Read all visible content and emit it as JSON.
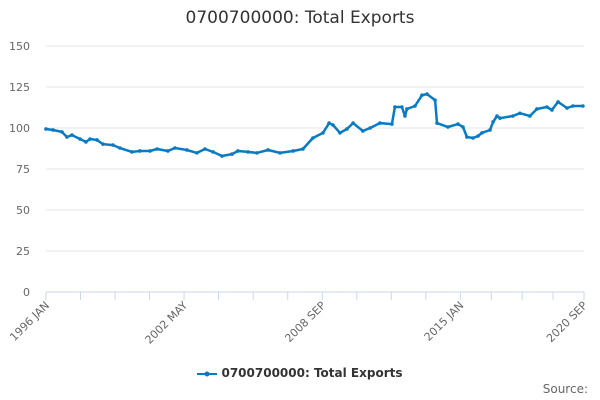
{
  "chart_data": {
    "type": "line",
    "title": "0700700000: Total Exports",
    "xlabel": "",
    "ylabel": "",
    "ylim": [
      0,
      150
    ],
    "yticks": [
      "0",
      "25",
      "50",
      "75",
      "100",
      "125",
      "150"
    ],
    "xlim": [
      1996.0,
      2020.67
    ],
    "xticks": [
      {
        "x": 1996.0,
        "label": "1996 JAN"
      },
      {
        "x": 2002.33,
        "label": "2002 MAY"
      },
      {
        "x": 2008.67,
        "label": "2008 SEP"
      },
      {
        "x": 2015.0,
        "label": "2015 JAN"
      },
      {
        "x": 2020.67,
        "label": "2020 SEP"
      }
    ],
    "grid": true,
    "legend_position": "bottom",
    "color": "#0a7bc2",
    "series": [
      {
        "name": "0700700000: Total Exports",
        "points": [
          [
            1996.0,
            99.4
          ],
          [
            1996.32,
            98.8
          ],
          [
            1996.73,
            97.6
          ],
          [
            1996.96,
            94.5
          ],
          [
            1997.19,
            95.7
          ],
          [
            1997.56,
            93.3
          ],
          [
            1997.83,
            91.5
          ],
          [
            1998.02,
            93.3
          ],
          [
            1998.34,
            92.7
          ],
          [
            1998.61,
            90.2
          ],
          [
            1999.07,
            89.6
          ],
          [
            1999.39,
            87.8
          ],
          [
            1999.94,
            85.4
          ],
          [
            2000.31,
            86
          ],
          [
            2000.77,
            86
          ],
          [
            2001.09,
            87.2
          ],
          [
            2001.59,
            86
          ],
          [
            2001.91,
            87.8
          ],
          [
            2002.46,
            86.6
          ],
          [
            2002.92,
            84.8
          ],
          [
            2003.29,
            87.2
          ],
          [
            2003.66,
            85.4
          ],
          [
            2004.07,
            82.9
          ],
          [
            2004.53,
            84.1
          ],
          [
            2004.8,
            86
          ],
          [
            2005.26,
            85.4
          ],
          [
            2005.67,
            84.8
          ],
          [
            2006.18,
            86.6
          ],
          [
            2006.73,
            84.8
          ],
          [
            2007.33,
            86
          ],
          [
            2007.78,
            87.2
          ],
          [
            2008.24,
            93.9
          ],
          [
            2008.7,
            97
          ],
          [
            2008.98,
            103
          ],
          [
            2009.16,
            101.8
          ],
          [
            2009.48,
            97
          ],
          [
            2009.8,
            99.4
          ],
          [
            2010.08,
            103
          ],
          [
            2010.53,
            98.2
          ],
          [
            2010.86,
            100
          ],
          [
            2011.31,
            103
          ],
          [
            2011.86,
            102.4
          ],
          [
            2012.0,
            112.8
          ],
          [
            2012.32,
            112.8
          ],
          [
            2012.46,
            107.3
          ],
          [
            2012.55,
            111.6
          ],
          [
            2012.92,
            113.4
          ],
          [
            2013.24,
            120
          ],
          [
            2013.47,
            120.7
          ],
          [
            2013.84,
            117
          ],
          [
            2013.93,
            103
          ],
          [
            2014.43,
            100.6
          ],
          [
            2014.89,
            102.4
          ],
          [
            2015.12,
            100.6
          ],
          [
            2015.3,
            94.5
          ],
          [
            2015.58,
            93.9
          ],
          [
            2015.81,
            95.1
          ],
          [
            2015.99,
            97
          ],
          [
            2016.36,
            98.8
          ],
          [
            2016.5,
            103.7
          ],
          [
            2016.68,
            107.3
          ],
          [
            2016.82,
            106
          ],
          [
            2017.41,
            107.3
          ],
          [
            2017.73,
            109
          ],
          [
            2018.19,
            107.3
          ],
          [
            2018.51,
            111.6
          ],
          [
            2018.97,
            112.8
          ],
          [
            2019.2,
            111
          ],
          [
            2019.48,
            115.9
          ],
          [
            2019.89,
            112.2
          ],
          [
            2020.16,
            113.4
          ],
          [
            2020.62,
            113.4
          ]
        ]
      }
    ],
    "source_label": "Source:"
  }
}
